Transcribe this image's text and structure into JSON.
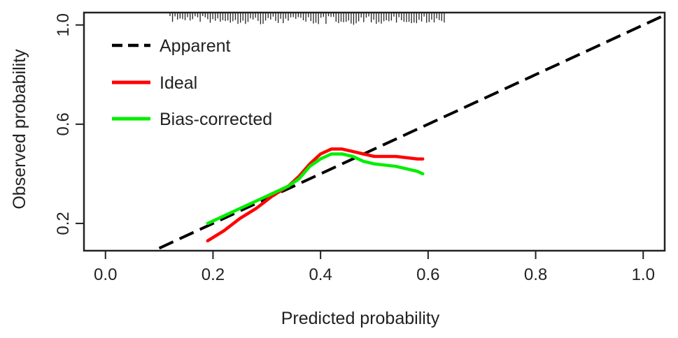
{
  "chart_data": {
    "type": "line",
    "title": "",
    "xlabel": "Predicted probability",
    "ylabel": "Observed probability",
    "xlim": [
      -0.04,
      1.04
    ],
    "ylim": [
      0.09,
      1.05
    ],
    "x_ticks": [
      0.0,
      0.2,
      0.4,
      0.6,
      0.8,
      1.0
    ],
    "x_tick_labels": [
      "0.0",
      "0.2",
      "0.4",
      "0.6",
      "0.8",
      "1.0"
    ],
    "y_ticks": [
      0.2,
      0.6,
      1.0
    ],
    "y_tick_labels": [
      "0.2",
      "0.6",
      "1.0"
    ],
    "grid": false,
    "legend_position": "top-left",
    "series": [
      {
        "name": "Apparent",
        "style": "dashed",
        "color": "#000000",
        "x": [
          0.1,
          1.04
        ],
        "y": [
          0.1,
          1.04
        ]
      },
      {
        "name": "Ideal",
        "style": "solid",
        "color": "#ff0000",
        "x": [
          0.19,
          0.22,
          0.25,
          0.28,
          0.31,
          0.34,
          0.36,
          0.38,
          0.4,
          0.42,
          0.44,
          0.46,
          0.48,
          0.5,
          0.54,
          0.58,
          0.59
        ],
        "y": [
          0.13,
          0.17,
          0.22,
          0.26,
          0.31,
          0.35,
          0.39,
          0.44,
          0.48,
          0.5,
          0.5,
          0.49,
          0.48,
          0.47,
          0.47,
          0.46,
          0.46
        ]
      },
      {
        "name": "Bias-corrected",
        "style": "solid",
        "color": "#00ee00",
        "x": [
          0.19,
          0.22,
          0.25,
          0.28,
          0.31,
          0.34,
          0.36,
          0.38,
          0.4,
          0.42,
          0.44,
          0.46,
          0.48,
          0.5,
          0.54,
          0.58,
          0.59
        ],
        "y": [
          0.2,
          0.23,
          0.26,
          0.29,
          0.32,
          0.35,
          0.38,
          0.43,
          0.46,
          0.48,
          0.48,
          0.47,
          0.45,
          0.44,
          0.43,
          0.41,
          0.4
        ]
      }
    ],
    "rug": {
      "x_start": 0.12,
      "x_end": 0.63,
      "count": 110
    }
  }
}
